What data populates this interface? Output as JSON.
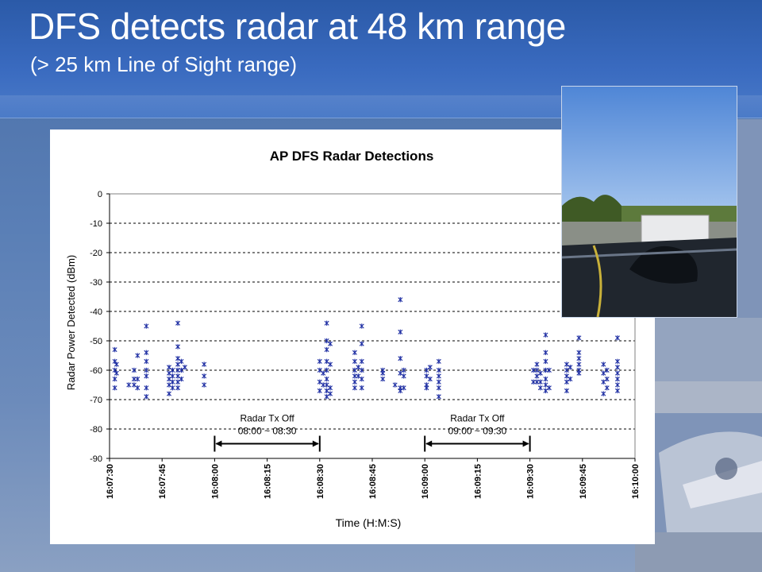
{
  "slide": {
    "title": "DFS detects radar at 48 km range",
    "subtitle": "(> 25 km Line of Sight range)"
  },
  "colors": {
    "title_band": "#2b5aa8",
    "marker": "#1f2fa3",
    "grid": "#000000",
    "axis_text": "#000000"
  },
  "photo": {
    "icon": "photo-icon",
    "alt": ""
  },
  "chart_data": {
    "type": "scatter",
    "title": "AP DFS Radar Detections",
    "xlabel": "Time (H:M:S)",
    "ylabel": "Radar Power Detected (dBm)",
    "ylim": [
      -90,
      0
    ],
    "yticks": [
      0,
      -10,
      -20,
      -30,
      -40,
      -50,
      -60,
      -70,
      -80,
      -90
    ],
    "xlim": [
      "16:07:30",
      "16:10:00"
    ],
    "xticks": [
      "16:07:30",
      "16:07:45",
      "16:08:00",
      "16:08:15",
      "16:08:30",
      "16:08:45",
      "16:09:00",
      "16:09:15",
      "16:09:30",
      "16:09:45",
      "16:10:00"
    ],
    "grid": "horizontal dashed",
    "marker": "asterisk",
    "series": [
      {
        "values": [
          [
            "16:07:31.5",
            -53
          ],
          [
            "16:07:31.5",
            -57
          ],
          [
            "16:07:31.5",
            -60
          ],
          [
            "16:07:31.5",
            -63
          ],
          [
            "16:07:31.5",
            -66
          ],
          [
            "16:07:32",
            -58
          ],
          [
            "16:07:32",
            -61
          ],
          [
            "16:07:35.5",
            -65
          ],
          [
            "16:07:37",
            -60
          ],
          [
            "16:07:37",
            -63
          ],
          [
            "16:07:37",
            -65
          ],
          [
            "16:07:38",
            -55
          ],
          [
            "16:07:38",
            -63
          ],
          [
            "16:07:38",
            -66
          ],
          [
            "16:07:40.5",
            -45
          ],
          [
            "16:07:40.5",
            -54
          ],
          [
            "16:07:40.5",
            -57
          ],
          [
            "16:07:40.5",
            -60
          ],
          [
            "16:07:40.5",
            -62
          ],
          [
            "16:07:40.5",
            -66
          ],
          [
            "16:07:40.5",
            -69
          ],
          [
            "16:07:47",
            -59
          ],
          [
            "16:07:47",
            -61
          ],
          [
            "16:07:47",
            -63
          ],
          [
            "16:07:47",
            -65
          ],
          [
            "16:07:47",
            -68
          ],
          [
            "16:07:48",
            -60
          ],
          [
            "16:07:48",
            -62
          ],
          [
            "16:07:48",
            -64
          ],
          [
            "16:07:48",
            -66
          ],
          [
            "16:07:49.5",
            -44
          ],
          [
            "16:07:49.5",
            -52
          ],
          [
            "16:07:49.5",
            -56
          ],
          [
            "16:07:49.5",
            -58
          ],
          [
            "16:07:49.5",
            -60
          ],
          [
            "16:07:49.5",
            -62
          ],
          [
            "16:07:49.5",
            -64
          ],
          [
            "16:07:49.5",
            -66
          ],
          [
            "16:07:50.5",
            -57
          ],
          [
            "16:07:50.5",
            -60
          ],
          [
            "16:07:50.5",
            -63
          ],
          [
            "16:07:51.5",
            -59
          ],
          [
            "16:07:57",
            -58
          ],
          [
            "16:07:57",
            -62
          ],
          [
            "16:07:57",
            -65
          ],
          [
            "16:08:30",
            -57
          ],
          [
            "16:08:30",
            -60
          ],
          [
            "16:08:30",
            -64
          ],
          [
            "16:08:30",
            -67
          ],
          [
            "16:08:31",
            -61
          ],
          [
            "16:08:31",
            -65
          ],
          [
            "16:08:32",
            -44
          ],
          [
            "16:08:32",
            -50
          ],
          [
            "16:08:32",
            -53
          ],
          [
            "16:08:32",
            -57
          ],
          [
            "16:08:32",
            -60
          ],
          [
            "16:08:32",
            -63
          ],
          [
            "16:08:32",
            -65
          ],
          [
            "16:08:32",
            -67
          ],
          [
            "16:08:32",
            -69
          ],
          [
            "16:08:33",
            -51
          ],
          [
            "16:08:33",
            -58
          ],
          [
            "16:08:33",
            -66
          ],
          [
            "16:08:33",
            -68
          ],
          [
            "16:08:40",
            -54
          ],
          [
            "16:08:40",
            -57
          ],
          [
            "16:08:40",
            -60
          ],
          [
            "16:08:40",
            -62
          ],
          [
            "16:08:40",
            -64
          ],
          [
            "16:08:40",
            -66
          ],
          [
            "16:08:41",
            -59
          ],
          [
            "16:08:41",
            -62
          ],
          [
            "16:08:42",
            -45
          ],
          [
            "16:08:42",
            -51
          ],
          [
            "16:08:42",
            -57
          ],
          [
            "16:08:42",
            -60
          ],
          [
            "16:08:42",
            -63
          ],
          [
            "16:08:42",
            -66
          ],
          [
            "16:08:48",
            -60
          ],
          [
            "16:08:48",
            -61
          ],
          [
            "16:08:48",
            -63
          ],
          [
            "16:08:51.5",
            -65
          ],
          [
            "16:08:53",
            -36
          ],
          [
            "16:08:53",
            -47
          ],
          [
            "16:08:53",
            -56
          ],
          [
            "16:08:53",
            -61
          ],
          [
            "16:08:53",
            -66
          ],
          [
            "16:08:53",
            -67
          ],
          [
            "16:08:54",
            -60
          ],
          [
            "16:08:54",
            -62
          ],
          [
            "16:08:54",
            -66
          ],
          [
            "16:09:00.5",
            -60
          ],
          [
            "16:09:00.5",
            -62
          ],
          [
            "16:09:00.5",
            -65
          ],
          [
            "16:09:00.5",
            -66
          ],
          [
            "16:09:01.5",
            -59
          ],
          [
            "16:09:01.5",
            -63
          ],
          [
            "16:09:04",
            -57
          ],
          [
            "16:09:04",
            -60
          ],
          [
            "16:09:04",
            -62
          ],
          [
            "16:09:04",
            -64
          ],
          [
            "16:09:04",
            -66
          ],
          [
            "16:09:04",
            -69
          ],
          [
            "16:09:31",
            -60
          ],
          [
            "16:09:31",
            -64
          ],
          [
            "16:09:32",
            -58
          ],
          [
            "16:09:32",
            -60
          ],
          [
            "16:09:32",
            -62
          ],
          [
            "16:09:32",
            -64
          ],
          [
            "16:09:33",
            -61
          ],
          [
            "16:09:33",
            -64
          ],
          [
            "16:09:33",
            -66
          ],
          [
            "16:09:34.5",
            -48
          ],
          [
            "16:09:34.5",
            -54
          ],
          [
            "16:09:34.5",
            -57
          ],
          [
            "16:09:34.5",
            -60
          ],
          [
            "16:09:34.5",
            -63
          ],
          [
            "16:09:34.5",
            -65
          ],
          [
            "16:09:34.5",
            -67
          ],
          [
            "16:09:35.5",
            -60
          ],
          [
            "16:09:35.5",
            -66
          ],
          [
            "16:09:40.5",
            -58
          ],
          [
            "16:09:40.5",
            -60
          ],
          [
            "16:09:40.5",
            -62
          ],
          [
            "16:09:40.5",
            -64
          ],
          [
            "16:09:40.5",
            -67
          ],
          [
            "16:09:41.5",
            -59
          ],
          [
            "16:09:41.5",
            -63
          ],
          [
            "16:09:44",
            -49
          ],
          [
            "16:09:44",
            -54
          ],
          [
            "16:09:44",
            -56
          ],
          [
            "16:09:44",
            -58
          ],
          [
            "16:09:44",
            -60
          ],
          [
            "16:09:44",
            -61
          ],
          [
            "16:09:51",
            -58
          ],
          [
            "16:09:51",
            -61
          ],
          [
            "16:09:51",
            -64
          ],
          [
            "16:09:51",
            -68
          ],
          [
            "16:09:52",
            -60
          ],
          [
            "16:09:52",
            -63
          ],
          [
            "16:09:52",
            -66
          ],
          [
            "16:09:55",
            -49
          ],
          [
            "16:09:55",
            -57
          ],
          [
            "16:09:55",
            -59
          ],
          [
            "16:09:55",
            -61
          ],
          [
            "16:09:55",
            -63
          ],
          [
            "16:09:55",
            -65
          ],
          [
            "16:09:55",
            -67
          ]
        ]
      }
    ],
    "annotations": [
      {
        "label_top": "Radar Tx Off",
        "label_bottom": "08:00 ~ 08:30",
        "from": "16:08:00",
        "to": "16:08:30",
        "y": -85
      },
      {
        "label_top": "Radar Tx Off",
        "label_bottom": "09:00 ~ 09:30",
        "from": "16:09:00",
        "to": "16:09:30",
        "y": -85
      }
    ]
  }
}
